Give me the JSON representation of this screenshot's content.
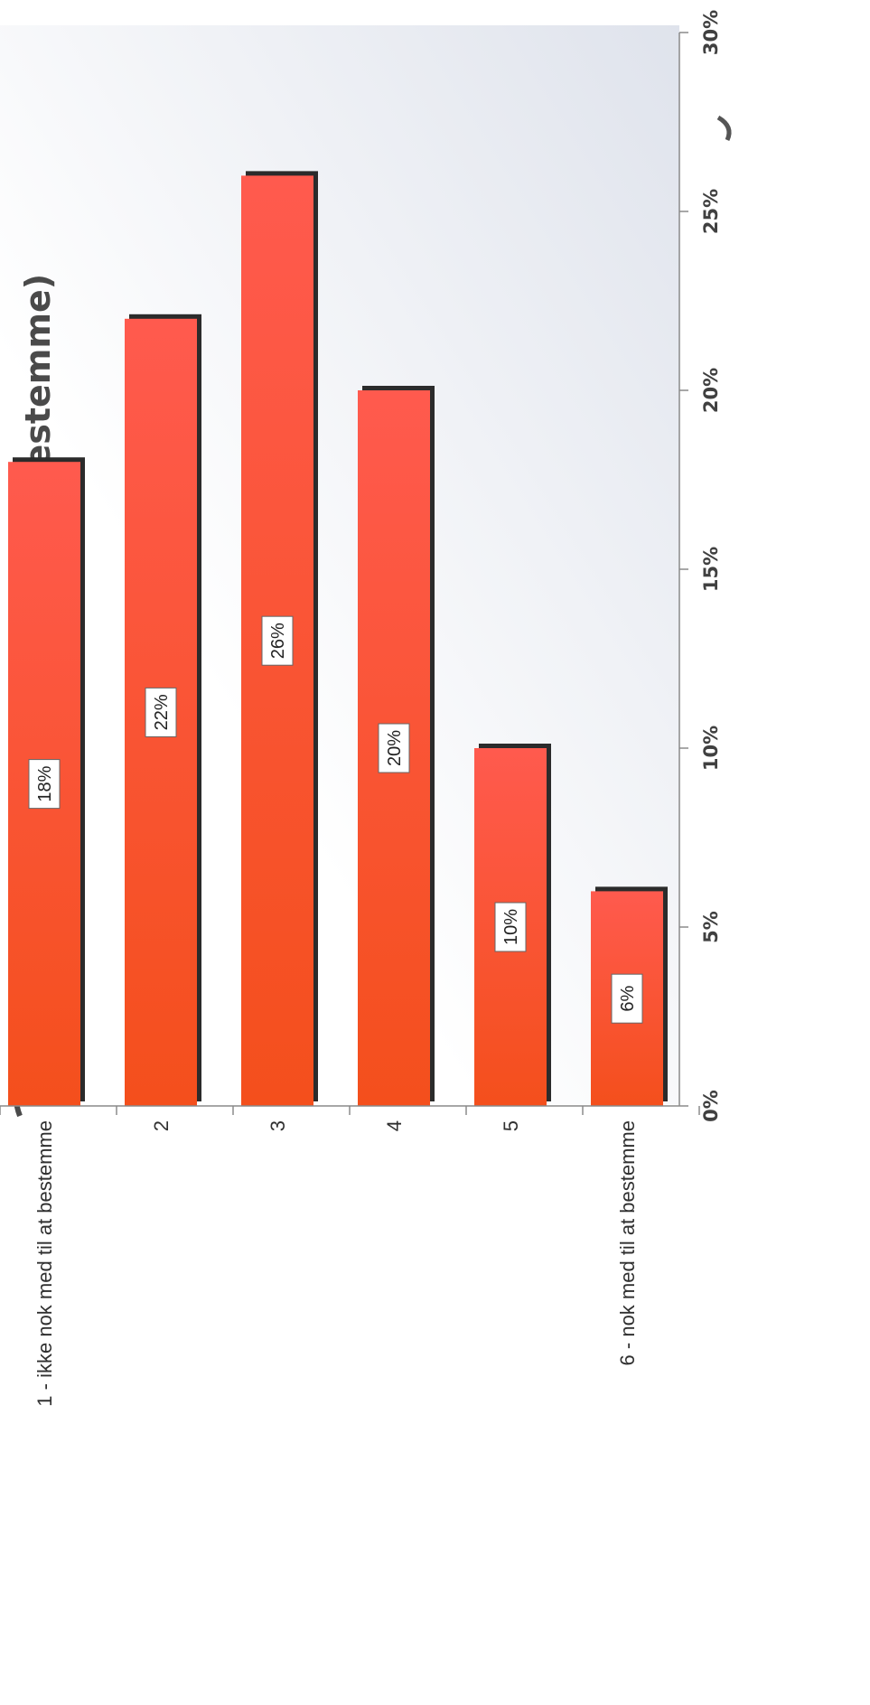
{
  "chart_data": {
    "type": "bar",
    "orientation": "horizontal",
    "title": "med til at bestemme)",
    "categories": [
      "1 - ikke nok med til at bestemme",
      "2",
      "3",
      "4",
      "5",
      "6 - nok med til at bestemme"
    ],
    "values": [
      18,
      22,
      26,
      20,
      10,
      6
    ],
    "data_labels": [
      "18%",
      "22%",
      "26%",
      "20%",
      "10%",
      "6%"
    ],
    "value_axis": {
      "min": 0,
      "max": 30,
      "ticks": [
        0,
        5,
        10,
        15,
        20,
        25,
        30
      ],
      "tick_labels": [
        "0%",
        "5%",
        "10%",
        "15%",
        "20%",
        "25%",
        "30%"
      ]
    },
    "grid": false,
    "legend": "none",
    "rotation": "chart is printed rotated 90 degrees",
    "colors": {
      "bar_top": "#ff5a4e",
      "bar_bottom": "#f44f1c",
      "bar_shadow": "#2b2b2b",
      "plot_background_light": "#ffffff",
      "plot_background_dark": "#dfe3ec"
    }
  }
}
